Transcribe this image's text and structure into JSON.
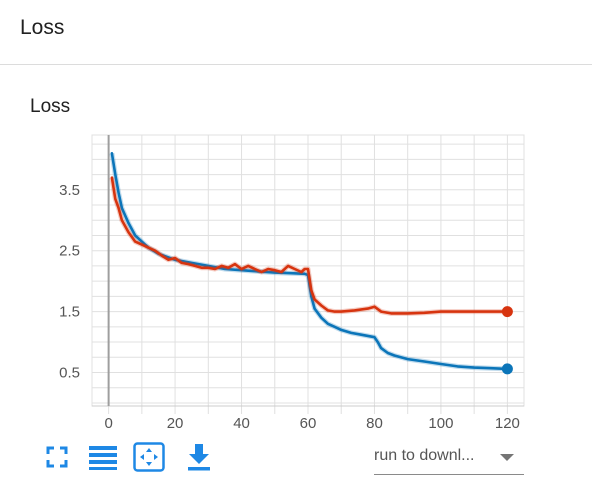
{
  "section": {
    "title": "Loss"
  },
  "card": {
    "title": "Loss"
  },
  "toolbar": {
    "buttons": [
      {
        "name": "fullscreen-icon"
      },
      {
        "name": "data-table-icon"
      },
      {
        "name": "fit-domain-icon"
      },
      {
        "name": "download-icon"
      }
    ]
  },
  "run_selector": {
    "value": "run to downl..."
  },
  "colors": {
    "accent": "#1e88e5",
    "series_blue": "#0b75b9",
    "series_red": "#d7340f"
  },
  "chart_data": {
    "type": "line",
    "title": "",
    "xlabel": "",
    "ylabel": "",
    "xlim": [
      -5,
      125
    ],
    "ylim": [
      -0.05,
      4.4
    ],
    "x_ticks": [
      0,
      20,
      40,
      60,
      80,
      100,
      120
    ],
    "y_ticks": [
      0.5,
      1.5,
      2.5,
      3.5
    ],
    "x_tick_labels": [
      "0",
      "20",
      "40",
      "60",
      "80",
      "100",
      "120"
    ],
    "y_tick_labels": [
      "0.5",
      "1.5",
      "2.5",
      "3.5"
    ],
    "grid": true,
    "legend": "none",
    "series": [
      {
        "color": "#0b75b9",
        "x": [
          1,
          2,
          3,
          4,
          6,
          8,
          10,
          12,
          15,
          20,
          25,
          30,
          35,
          40,
          45,
          50,
          55,
          59,
          60,
          61,
          62,
          64,
          66,
          68,
          70,
          73,
          76,
          80,
          81,
          82,
          84,
          86,
          90,
          95,
          100,
          105,
          110,
          115,
          120
        ],
        "y": [
          4.1,
          3.75,
          3.45,
          3.2,
          2.95,
          2.75,
          2.65,
          2.55,
          2.45,
          2.35,
          2.3,
          2.25,
          2.2,
          2.18,
          2.16,
          2.14,
          2.13,
          2.12,
          2.1,
          1.75,
          1.55,
          1.4,
          1.3,
          1.25,
          1.2,
          1.15,
          1.12,
          1.08,
          1.0,
          0.9,
          0.82,
          0.78,
          0.72,
          0.68,
          0.64,
          0.6,
          0.58,
          0.57,
          0.56
        ]
      },
      {
        "color": "#d7340f",
        "x": [
          1,
          2,
          3,
          4,
          6,
          8,
          10,
          12,
          14,
          16,
          18,
          20,
          22,
          24,
          26,
          28,
          30,
          32,
          34,
          36,
          38,
          40,
          42,
          44,
          46,
          48,
          50,
          52,
          54,
          56,
          58,
          59,
          60,
          61,
          62,
          64,
          66,
          68,
          70,
          74,
          78,
          80,
          82,
          85,
          90,
          95,
          100,
          110,
          120
        ],
        "y": [
          3.7,
          3.35,
          3.2,
          3.0,
          2.8,
          2.65,
          2.6,
          2.55,
          2.5,
          2.42,
          2.35,
          2.38,
          2.3,
          2.28,
          2.25,
          2.22,
          2.22,
          2.2,
          2.25,
          2.22,
          2.28,
          2.2,
          2.25,
          2.2,
          2.15,
          2.2,
          2.18,
          2.15,
          2.25,
          2.2,
          2.15,
          2.2,
          2.2,
          1.85,
          1.7,
          1.6,
          1.52,
          1.5,
          1.5,
          1.52,
          1.55,
          1.58,
          1.5,
          1.47,
          1.47,
          1.48,
          1.5,
          1.5,
          1.5
        ]
      }
    ]
  }
}
